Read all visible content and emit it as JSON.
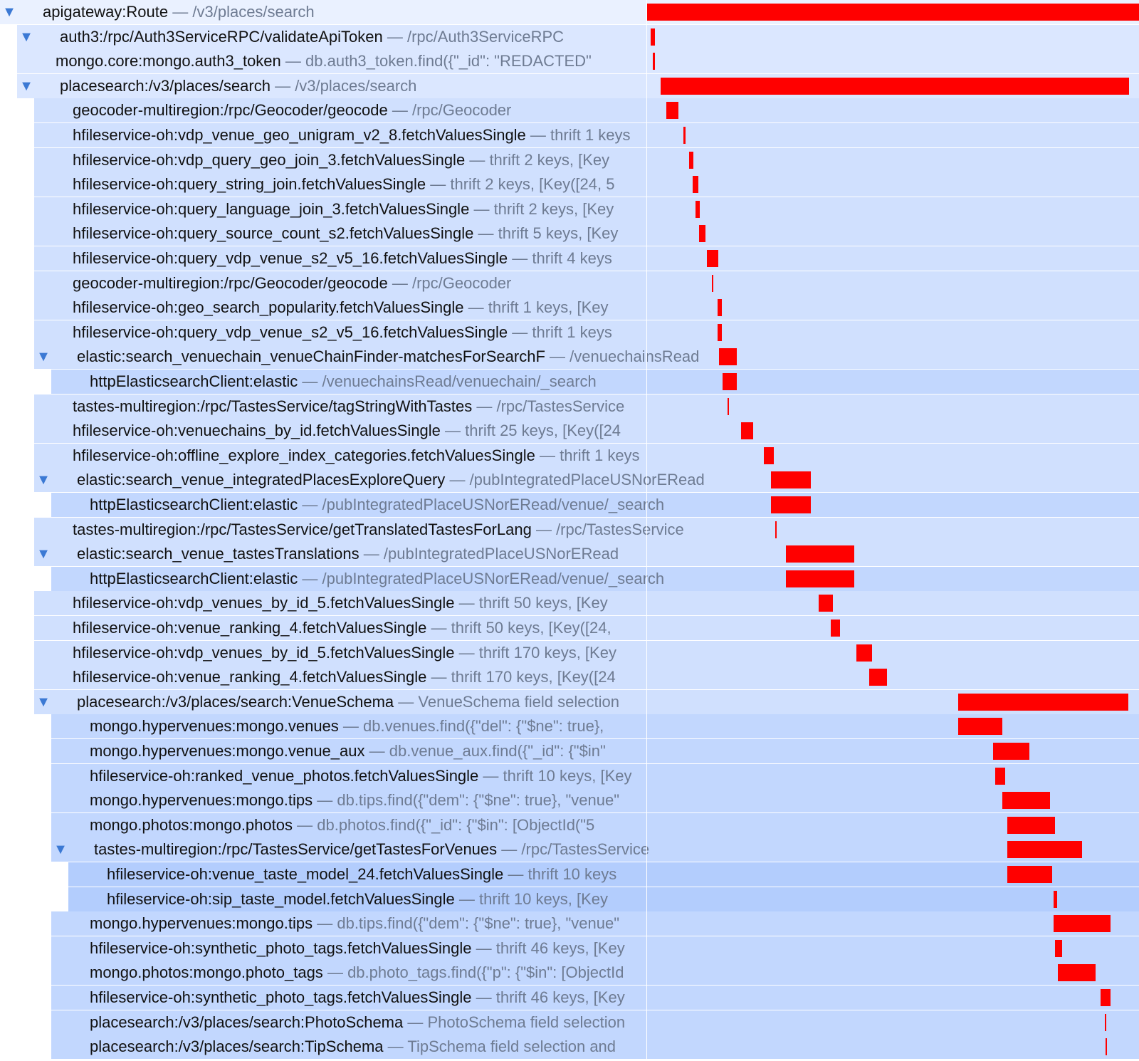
{
  "colors": {
    "bar": "#ff0000",
    "toggle": "#3b79d4",
    "operation_text": "#111111",
    "description_text": "#6e7b92",
    "shade_depth": [
      "#eaf1ff",
      "#dbe7ff",
      "#d0e0fe",
      "#c2d7fe",
      "#b3cdfd"
    ]
  },
  "separator": "—",
  "toggle_icon": "▼",
  "spans": [
    {
      "depth": 0,
      "expanded": true,
      "op": "apigateway:Route",
      "desc": "/v3/places/search",
      "start": 0.0,
      "dur": 1.0
    },
    {
      "depth": 1,
      "expanded": true,
      "op": "auth3:/rpc/Auth3ServiceRPC/validateApiToken",
      "desc": "/rpc/Auth3ServiceRPC",
      "start": 0.0068,
      "dur": 0.0085
    },
    {
      "depth": 1,
      "op": "mongo.core:mongo.auth3_token",
      "desc": "db.auth3_token.find({\"_id\": \"REDACTED\"",
      "start": 0.0119,
      "dur": 0.0034
    },
    {
      "depth": 1,
      "expanded": true,
      "op": "placesearch:/v3/places/search",
      "desc": "/v3/places/search",
      "start": 0.0273,
      "dur": 0.9522
    },
    {
      "depth": 2,
      "op": "geocoder-multiregion:/rpc/Geocoder/geocode",
      "desc": "/rpc/Geocoder",
      "start": 0.0392,
      "dur": 0.0239
    },
    {
      "depth": 2,
      "op": "hfileservice-oh:vdp_venue_geo_unigram_v2_8.fetchValuesSingle",
      "desc": "thrift 1 keys",
      "start": 0.0733,
      "dur": 0.0051
    },
    {
      "depth": 2,
      "op": "hfileservice-oh:vdp_query_geo_join_3.fetchValuesSingle",
      "desc": "thrift 2 keys, [Key",
      "start": 0.0852,
      "dur": 0.0085
    },
    {
      "depth": 2,
      "op": "hfileservice-oh:query_string_join.fetchValuesSingle",
      "desc": "thrift 2 keys, [Key([24, 5",
      "start": 0.092,
      "dur": 0.0119
    },
    {
      "depth": 2,
      "op": "hfileservice-oh:query_language_join_3.fetchValuesSingle",
      "desc": "thrift 2 keys, [Key",
      "start": 0.0988,
      "dur": 0.0085
    },
    {
      "depth": 2,
      "op": "hfileservice-oh:query_source_count_s2.fetchValuesSingle",
      "desc": "thrift 5 keys, [Key",
      "start": 0.1056,
      "dur": 0.0136
    },
    {
      "depth": 2,
      "op": "hfileservice-oh:query_vdp_venue_s2_v5_16.fetchValuesSingle",
      "desc": "thrift 4 keys",
      "start": 0.1209,
      "dur": 0.0239
    },
    {
      "depth": 2,
      "op": "geocoder-multiregion:/rpc/Geocoder/geocode",
      "desc": "/rpc/Geocoder",
      "start": 0.1312,
      "dur": 0.0034
    },
    {
      "depth": 2,
      "op": "hfileservice-oh:geo_search_popularity.fetchValuesSingle",
      "desc": "thrift 1 keys, [Key",
      "start": 0.1431,
      "dur": 0.0085
    },
    {
      "depth": 2,
      "op": "hfileservice-oh:query_vdp_venue_s2_v5_16.fetchValuesSingle",
      "desc": "thrift 1 keys",
      "start": 0.1431,
      "dur": 0.0085
    },
    {
      "depth": 2,
      "expanded": true,
      "op": "elastic:search_venuechain_venueChainFinder-matchesForSearchF",
      "desc": "/venuechainsRead",
      "start": 0.1465,
      "dur": 0.0358
    },
    {
      "depth": 3,
      "op": "httpElasticsearchClient:elastic",
      "desc": "/venuechainsRead/venuechain/_search",
      "start": 0.1533,
      "dur": 0.029
    },
    {
      "depth": 2,
      "op": "tastes-multiregion:/rpc/TastesService/tagStringWithTastes",
      "desc": "/rpc/TastesService",
      "start": 0.1636,
      "dur": 0.0034
    },
    {
      "depth": 2,
      "op": "hfileservice-oh:venuechains_by_id.fetchValuesSingle",
      "desc": "thrift 25 keys, [Key([24",
      "start": 0.1917,
      "dur": 0.0239
    },
    {
      "depth": 2,
      "op": "hfileservice-oh:offline_explore_index_categories.fetchValuesSingle",
      "desc": "thrift 1 keys",
      "start": 0.2368,
      "dur": 0.0205
    },
    {
      "depth": 2,
      "expanded": true,
      "op": "elastic:search_venue_integratedPlacesExploreQuery",
      "desc": "/pubIntegratedPlaceUSNorERead",
      "start": 0.2521,
      "dur": 0.0801
    },
    {
      "depth": 3,
      "op": "httpElasticsearchClient:elastic",
      "desc": "/pubIntegratedPlaceUSNorERead/venue/_search",
      "start": 0.2521,
      "dur": 0.0801
    },
    {
      "depth": 2,
      "op": "tastes-multiregion:/rpc/TastesService/getTranslatedTastesForLang",
      "desc": "/rpc/TastesService",
      "start": 0.2606,
      "dur": 0.0034
    },
    {
      "depth": 2,
      "expanded": true,
      "op": "elastic:search_venue_tastesTranslations",
      "desc": "/pubIntegratedPlaceUSNorERead",
      "start": 0.2828,
      "dur": 0.138
    },
    {
      "depth": 3,
      "op": "httpElasticsearchClient:elastic",
      "desc": "/pubIntegratedPlaceUSNorERead/venue/_search",
      "start": 0.2828,
      "dur": 0.138
    },
    {
      "depth": 2,
      "op": "hfileservice-oh:vdp_venues_by_id_5.fetchValuesSingle",
      "desc": "thrift 50 keys, [Key",
      "start": 0.3492,
      "dur": 0.029
    },
    {
      "depth": 2,
      "op": "hfileservice-oh:venue_ranking_4.fetchValuesSingle",
      "desc": "thrift 50 keys, [Key([24,",
      "start": 0.3731,
      "dur": 0.0187
    },
    {
      "depth": 2,
      "op": "hfileservice-oh:vdp_venues_by_id_5.fetchValuesSingle",
      "desc": "thrift 170 keys, [Key",
      "start": 0.4259,
      "dur": 0.0307
    },
    {
      "depth": 2,
      "op": "hfileservice-oh:venue_ranking_4.fetchValuesSingle",
      "desc": "thrift 170 keys, [Key([24",
      "start": 0.4514,
      "dur": 0.0358
    },
    {
      "depth": 2,
      "expanded": true,
      "op": "placesearch:/v3/places/search:VenueSchema",
      "desc": "VenueSchema field selection",
      "start": 0.6329,
      "dur": 0.3458
    },
    {
      "depth": 3,
      "op": "mongo.hypervenues:mongo.venues",
      "desc": "db.venues.find({\"del\": {\"$ne\": true},",
      "start": 0.6329,
      "dur": 0.0887
    },
    {
      "depth": 3,
      "op": "mongo.hypervenues:mongo.venue_aux",
      "desc": "db.venue_aux.find({\"_id\": {\"$in\"",
      "start": 0.7036,
      "dur": 0.0733
    },
    {
      "depth": 3,
      "op": "hfileservice-oh:ranked_venue_photos.fetchValuesSingle",
      "desc": "thrift 10 keys, [Key",
      "start": 0.707,
      "dur": 0.0205
    },
    {
      "depth": 3,
      "op": "mongo.hypervenues:mongo.tips",
      "desc": "db.tips.find({\"dem\": {\"$ne\": true}, \"venue\"",
      "start": 0.7223,
      "dur": 0.0972
    },
    {
      "depth": 3,
      "op": "mongo.photos:mongo.photos",
      "desc": "db.photos.find({\"_id\": {\"$in\": [ObjectId(\"5",
      "start": 0.7325,
      "dur": 0.0972
    },
    {
      "depth": 3,
      "expanded": true,
      "op": "tastes-multiregion:/rpc/TastesService/getTastesForVenues",
      "desc": "/rpc/TastesService",
      "start": 0.7325,
      "dur": 0.1517
    },
    {
      "depth": 4,
      "op": "hfileservice-oh:venue_taste_model_24.fetchValuesSingle",
      "desc": "thrift 10 keys",
      "start": 0.7325,
      "dur": 0.0904
    },
    {
      "depth": 4,
      "op": "hfileservice-oh:sip_taste_model.fetchValuesSingle",
      "desc": "thrift 10 keys, [Key",
      "start": 0.8262,
      "dur": 0.0068
    },
    {
      "depth": 3,
      "op": "mongo.hypervenues:mongo.tips",
      "desc": "db.tips.find({\"dem\": {\"$ne\": true}, \"venue\"",
      "start": 0.8262,
      "dur": 0.1158
    },
    {
      "depth": 3,
      "op": "hfileservice-oh:synthetic_photo_tags.fetchValuesSingle",
      "desc": "thrift 46 keys, [Key",
      "start": 0.8296,
      "dur": 0.0136
    },
    {
      "depth": 3,
      "op": "mongo.photos:mongo.photo_tags",
      "desc": "db.photo_tags.find({\"p\": {\"$in\": [ObjectId",
      "start": 0.8347,
      "dur": 0.0767
    },
    {
      "depth": 3,
      "op": "hfileservice-oh:synthetic_photo_tags.fetchValuesSingle",
      "desc": "thrift 46 keys, [Key",
      "start": 0.9216,
      "dur": 0.0205
    },
    {
      "depth": 3,
      "op": "placesearch:/v3/places/search:PhotoSchema",
      "desc": "PhotoSchema field selection",
      "start": 0.9301,
      "dur": 0.0034
    },
    {
      "depth": 3,
      "op": "placesearch:/v3/places/search:TipSchema",
      "desc": "TipSchema field selection and",
      "start": 0.9318,
      "dur": 0.0034
    }
  ]
}
